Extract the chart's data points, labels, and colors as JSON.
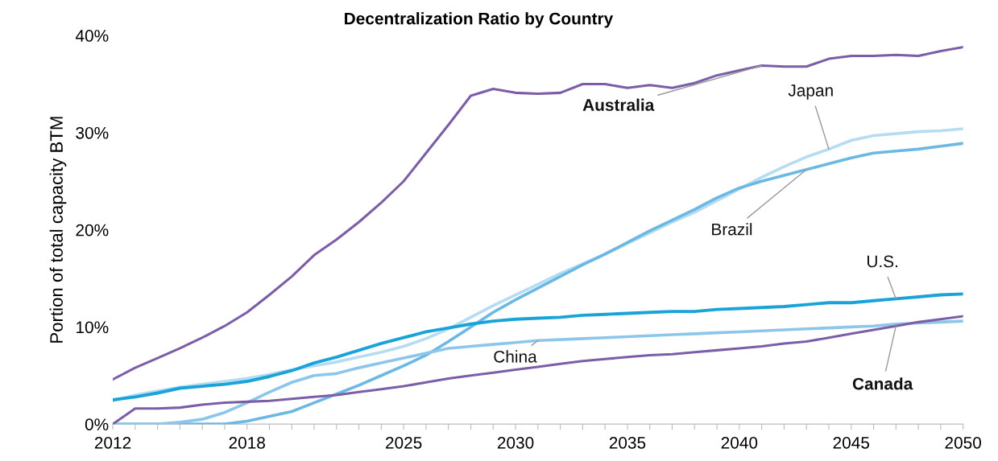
{
  "chart_data": {
    "type": "line",
    "title": "Decentralization Ratio by Country",
    "ylabel": "Portion of total capacity BTM",
    "x": [
      2012,
      2013,
      2014,
      2015,
      2016,
      2017,
      2018,
      2019,
      2020,
      2021,
      2022,
      2023,
      2024,
      2025,
      2026,
      2027,
      2028,
      2029,
      2030,
      2031,
      2032,
      2033,
      2034,
      2035,
      2036,
      2037,
      2038,
      2039,
      2040,
      2041,
      2042,
      2043,
      2044,
      2045,
      2046,
      2047,
      2048,
      2049,
      2050
    ],
    "series": [
      {
        "name": "Australia",
        "color": "#7b5ea7",
        "values": [
          4.6,
          5.8,
          6.8,
          7.8,
          8.9,
          10.1,
          11.5,
          13.3,
          15.2,
          17.4,
          19.0,
          20.8,
          22.8,
          25.0,
          27.9,
          30.8,
          33.8,
          34.5,
          34.1,
          34.0,
          34.1,
          35.0,
          35.0,
          34.6,
          34.9,
          34.6,
          35.1,
          35.9,
          36.4,
          36.9,
          36.8,
          36.8,
          37.6,
          37.9,
          37.9,
          38.0,
          37.9,
          38.4,
          38.8
        ]
      },
      {
        "name": "Japan",
        "color": "#b5dcf3",
        "values": [
          2.4,
          3.0,
          3.4,
          3.8,
          4.1,
          4.4,
          4.7,
          5.1,
          5.6,
          6.0,
          6.4,
          6.9,
          7.4,
          8.0,
          8.8,
          9.8,
          11.0,
          12.2,
          13.3,
          14.4,
          15.5,
          16.5,
          17.5,
          18.6,
          19.7,
          20.8,
          21.8,
          23.0,
          24.2,
          25.4,
          26.5,
          27.5,
          28.3,
          29.2,
          29.7,
          29.9,
          30.1,
          30.2,
          30.4
        ]
      },
      {
        "name": "Brazil",
        "color": "#6bb8e4",
        "values": [
          0,
          0,
          0,
          0,
          0,
          0,
          0.3,
          0.8,
          1.3,
          2.2,
          3.1,
          4.0,
          5.0,
          6.0,
          7.1,
          8.5,
          10.0,
          11.5,
          12.8,
          14.0,
          15.2,
          16.4,
          17.5,
          18.7,
          19.9,
          21.0,
          22.1,
          23.3,
          24.3,
          25.0,
          25.6,
          26.2,
          26.8,
          27.4,
          27.9,
          28.1,
          28.3,
          28.6,
          28.9
        ]
      },
      {
        "name": "U.S.",
        "color": "#1aa3d9",
        "values": [
          2.5,
          2.8,
          3.2,
          3.7,
          3.9,
          4.1,
          4.4,
          4.9,
          5.5,
          6.3,
          6.9,
          7.6,
          8.3,
          8.9,
          9.5,
          9.9,
          10.3,
          10.6,
          10.8,
          10.9,
          11.0,
          11.2,
          11.3,
          11.4,
          11.5,
          11.6,
          11.6,
          11.8,
          11.9,
          12.0,
          12.1,
          12.3,
          12.5,
          12.5,
          12.7,
          12.9,
          13.1,
          13.3,
          13.4
        ]
      },
      {
        "name": "China",
        "color": "#8cc6ea",
        "values": [
          0,
          0,
          0,
          0.2,
          0.5,
          1.2,
          2.2,
          3.3,
          4.3,
          5.0,
          5.2,
          5.8,
          6.3,
          6.8,
          7.3,
          7.8,
          8.0,
          8.2,
          8.4,
          8.6,
          8.7,
          8.8,
          8.9,
          9.0,
          9.1,
          9.2,
          9.3,
          9.4,
          9.5,
          9.6,
          9.7,
          9.8,
          9.9,
          10.0,
          10.1,
          10.3,
          10.4,
          10.5,
          10.6
        ]
      },
      {
        "name": "Canada",
        "color": "#7b5ea7",
        "values": [
          0,
          1.6,
          1.6,
          1.7,
          2.0,
          2.2,
          2.3,
          2.4,
          2.6,
          2.8,
          3.0,
          3.3,
          3.6,
          3.9,
          4.3,
          4.7,
          5.0,
          5.3,
          5.6,
          5.9,
          6.2,
          6.5,
          6.7,
          6.9,
          7.1,
          7.2,
          7.4,
          7.6,
          7.8,
          8.0,
          8.3,
          8.5,
          8.9,
          9.3,
          9.7,
          10.1,
          10.5,
          10.8,
          11.1
        ]
      }
    ],
    "xlim": [
      2012,
      2050
    ],
    "xticks": [
      2012,
      {
        "value": 2013,
        "label": null
      },
      {
        "value": 2014,
        "label": null
      },
      {
        "value": 2015,
        "label": null
      },
      {
        "value": 2016,
        "label": null
      },
      {
        "value": 2017,
        "label": null
      },
      2018,
      {
        "value": 2019,
        "label": null
      },
      {
        "value": 2020,
        "label": null
      },
      {
        "value": 2021,
        "label": null
      },
      {
        "value": 2022,
        "label": null
      },
      {
        "value": 2023,
        "label": null
      },
      {
        "value": 2024,
        "label": null
      },
      2025,
      {
        "value": 2026,
        "label": null
      },
      {
        "value": 2027,
        "label": null
      },
      {
        "value": 2028,
        "label": null
      },
      {
        "value": 2029,
        "label": null
      },
      2030,
      {
        "value": 2031,
        "label": null
      },
      {
        "value": 2032,
        "label": null
      },
      {
        "value": 2033,
        "label": null
      },
      {
        "value": 2034,
        "label": null
      },
      2035,
      {
        "value": 2036,
        "label": null
      },
      {
        "value": 2037,
        "label": null
      },
      {
        "value": 2038,
        "label": null
      },
      {
        "value": 2039,
        "label": null
      },
      2040,
      {
        "value": 2041,
        "label": null
      },
      {
        "value": 2042,
        "label": null
      },
      {
        "value": 2043,
        "label": null
      },
      {
        "value": 2044,
        "label": null
      },
      2045,
      {
        "value": 2046,
        "label": null
      },
      {
        "value": 2047,
        "label": null
      },
      {
        "value": 2048,
        "label": null
      },
      {
        "value": 2049,
        "label": null
      },
      2050
    ],
    "ylim": [
      0,
      40
    ],
    "yticks": [
      {
        "value": 0,
        "label": "0%"
      },
      {
        "value": 10,
        "label": "10%"
      },
      {
        "value": 20,
        "label": "20%"
      },
      {
        "value": 30,
        "label": "30%"
      },
      {
        "value": 40,
        "label": "40%"
      }
    ],
    "grid": false,
    "legend": false,
    "marker": "none",
    "line_style": "solid"
  }
}
